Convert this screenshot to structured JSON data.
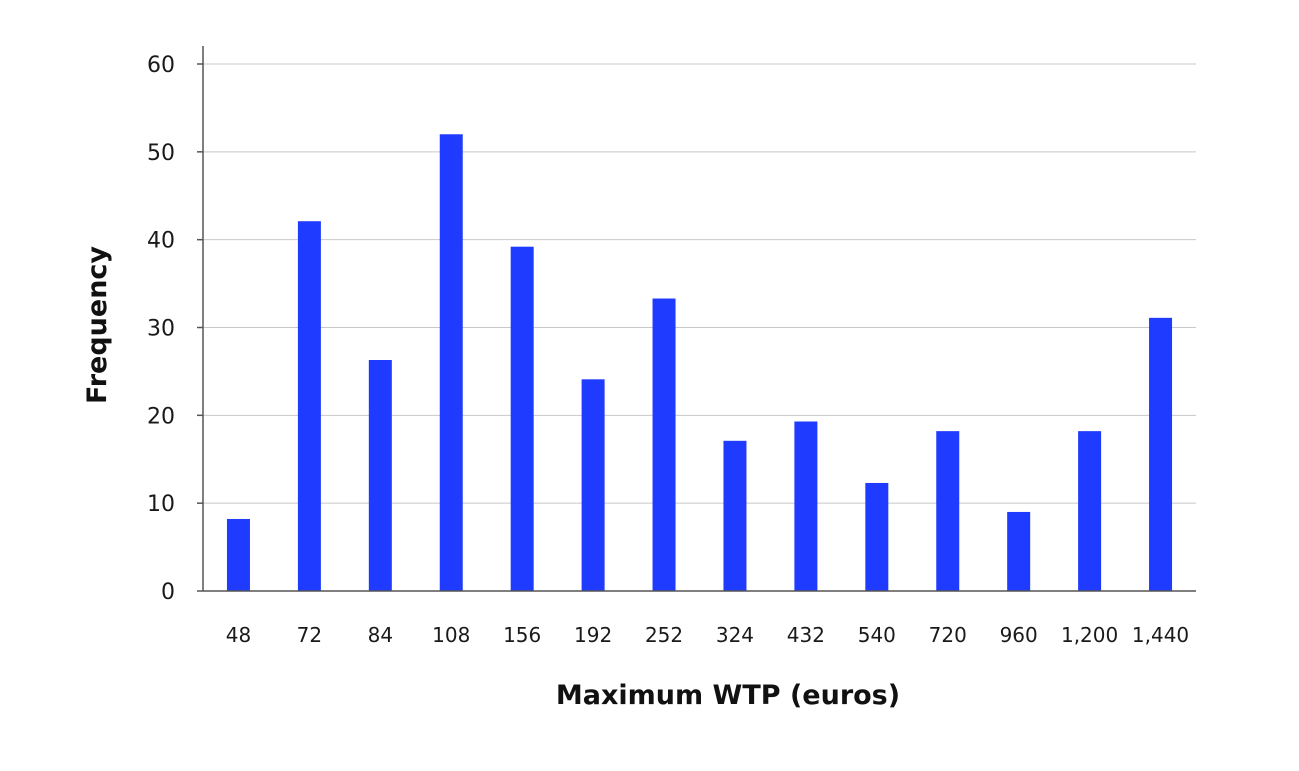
{
  "chart_data": {
    "type": "bar",
    "xlabel": "Maximum WTP (euros)",
    "ylabel": "Frequency",
    "categories": [
      "48",
      "72",
      "84",
      "108",
      "156",
      "192",
      "252",
      "324",
      "432",
      "540",
      "720",
      "960",
      "1,200",
      "1,440"
    ],
    "values": [
      8.2,
      42.1,
      26.3,
      52.0,
      39.2,
      24.1,
      33.3,
      17.1,
      19.3,
      12.3,
      18.2,
      9.0,
      18.2,
      31.1
    ],
    "ylim": [
      0,
      60
    ],
    "yticks": [
      0,
      10,
      20,
      30,
      40,
      50,
      60
    ],
    "grid": true,
    "bar_color": "#1f3bff"
  }
}
